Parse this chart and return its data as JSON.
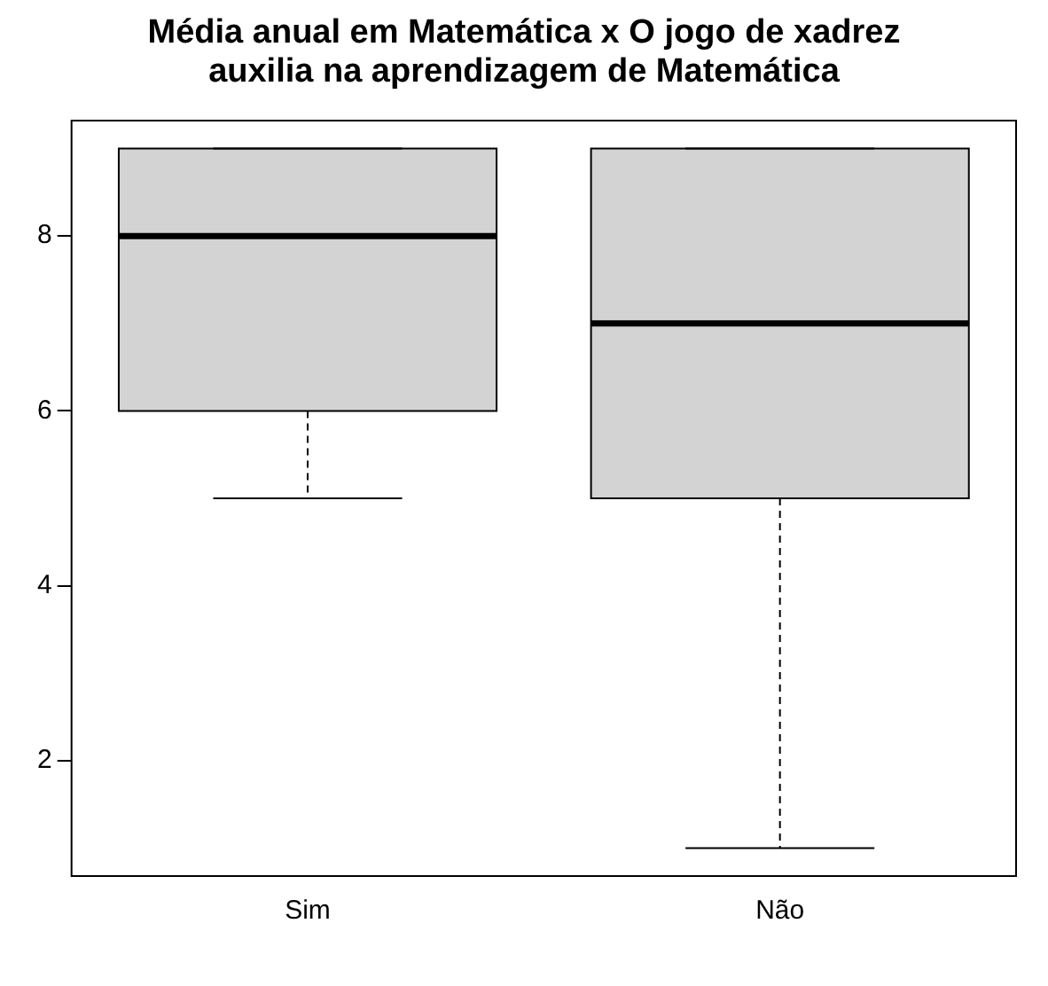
{
  "chart_data": {
    "type": "box",
    "title": "Média anual em Matemática x O jogo de xadrez auxilia na aprendizagem de Matemática",
    "categories": [
      "Sim",
      "Não"
    ],
    "boxes": [
      {
        "low": 5,
        "q1": 6,
        "median": 8,
        "q3": 9,
        "high": 9
      },
      {
        "low": 1,
        "q1": 5,
        "median": 7,
        "q3": 9,
        "high": 9
      }
    ],
    "color": "#d3d3d3",
    "ylim": [
      0.68,
      9.32
    ],
    "yticks": [
      2,
      4,
      6,
      8
    ],
    "grid": false
  }
}
